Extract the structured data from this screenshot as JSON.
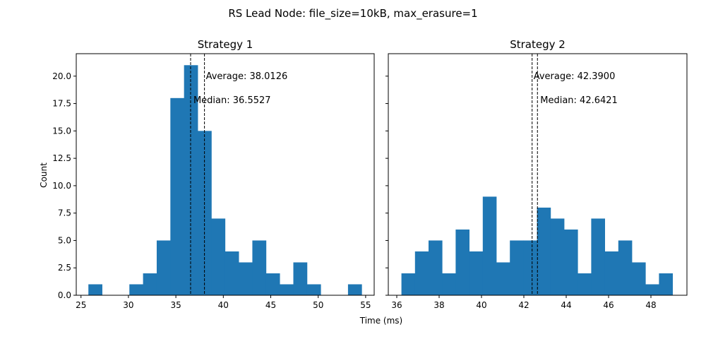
{
  "figure": {
    "suptitle": "RS Lead Node: file_size=10kB, max_erasure=1",
    "xlabel": "Time (ms)",
    "ylabel": "Count"
  },
  "chart_data": [
    {
      "type": "bar",
      "title": "Strategy 1",
      "xlabel": "Time (ms)",
      "ylabel": "Count",
      "xlim": [
        24.5,
        55.9
      ],
      "ylim": [
        0,
        22.05
      ],
      "xticks": [
        25,
        30,
        35,
        40,
        45,
        50,
        55
      ],
      "xtick_labels": [
        "25",
        "30",
        "35",
        "40",
        "45",
        "50",
        "55"
      ],
      "yticks": [
        0,
        2.5,
        5,
        7.5,
        10,
        12.5,
        15,
        17.5,
        20
      ],
      "ytick_labels": [
        "0.0",
        "2.5",
        "5.0",
        "7.5",
        "10.0",
        "12.5",
        "15.0",
        "17.5",
        "20.0"
      ],
      "bin_edges": [
        25.78,
        27.22,
        28.66,
        30.1,
        31.54,
        32.98,
        34.42,
        35.86,
        37.3,
        38.74,
        40.18,
        41.62,
        43.06,
        44.5,
        45.94,
        47.38,
        48.82,
        50.26,
        51.7,
        53.14,
        54.58
      ],
      "counts": [
        1,
        0,
        0,
        1,
        2,
        5,
        18,
        21,
        15,
        7,
        4,
        3,
        5,
        2,
        1,
        3,
        1,
        0,
        0,
        1
      ],
      "bar_color": "#1f77b4",
      "average": 38.0126,
      "median": 36.5527,
      "average_label": "Average: 38.0126",
      "median_label": "Median: 36.5527",
      "line_color": "#000000",
      "line_style": "dashed"
    },
    {
      "type": "bar",
      "title": "Strategy 2",
      "xlabel": "Time (ms)",
      "ylabel": "Count",
      "xlim": [
        35.6,
        49.7
      ],
      "ylim": [
        0,
        22.05
      ],
      "xticks": [
        36,
        38,
        40,
        42,
        44,
        46,
        48
      ],
      "xtick_labels": [
        "36",
        "38",
        "40",
        "42",
        "44",
        "46",
        "48"
      ],
      "yticks": [
        0,
        2.5,
        5,
        7.5,
        10,
        12.5,
        15,
        17.5,
        20
      ],
      "bin_edges": [
        36.22,
        36.86,
        37.5,
        38.14,
        38.78,
        39.42,
        40.06,
        40.7,
        41.34,
        41.98,
        42.62,
        43.26,
        43.9,
        44.54,
        45.18,
        45.82,
        46.46,
        47.1,
        47.74,
        48.38,
        49.02
      ],
      "counts": [
        2,
        4,
        5,
        2,
        6,
        4,
        9,
        3,
        5,
        5,
        8,
        7,
        6,
        2,
        7,
        4,
        5,
        3,
        1,
        2
      ],
      "bar_color": "#1f77b4",
      "average": 42.39,
      "median": 42.6421,
      "average_label": "Average: 42.3900",
      "median_label": "Median: 42.6421",
      "line_color": "#000000",
      "line_style": "dashed"
    }
  ]
}
